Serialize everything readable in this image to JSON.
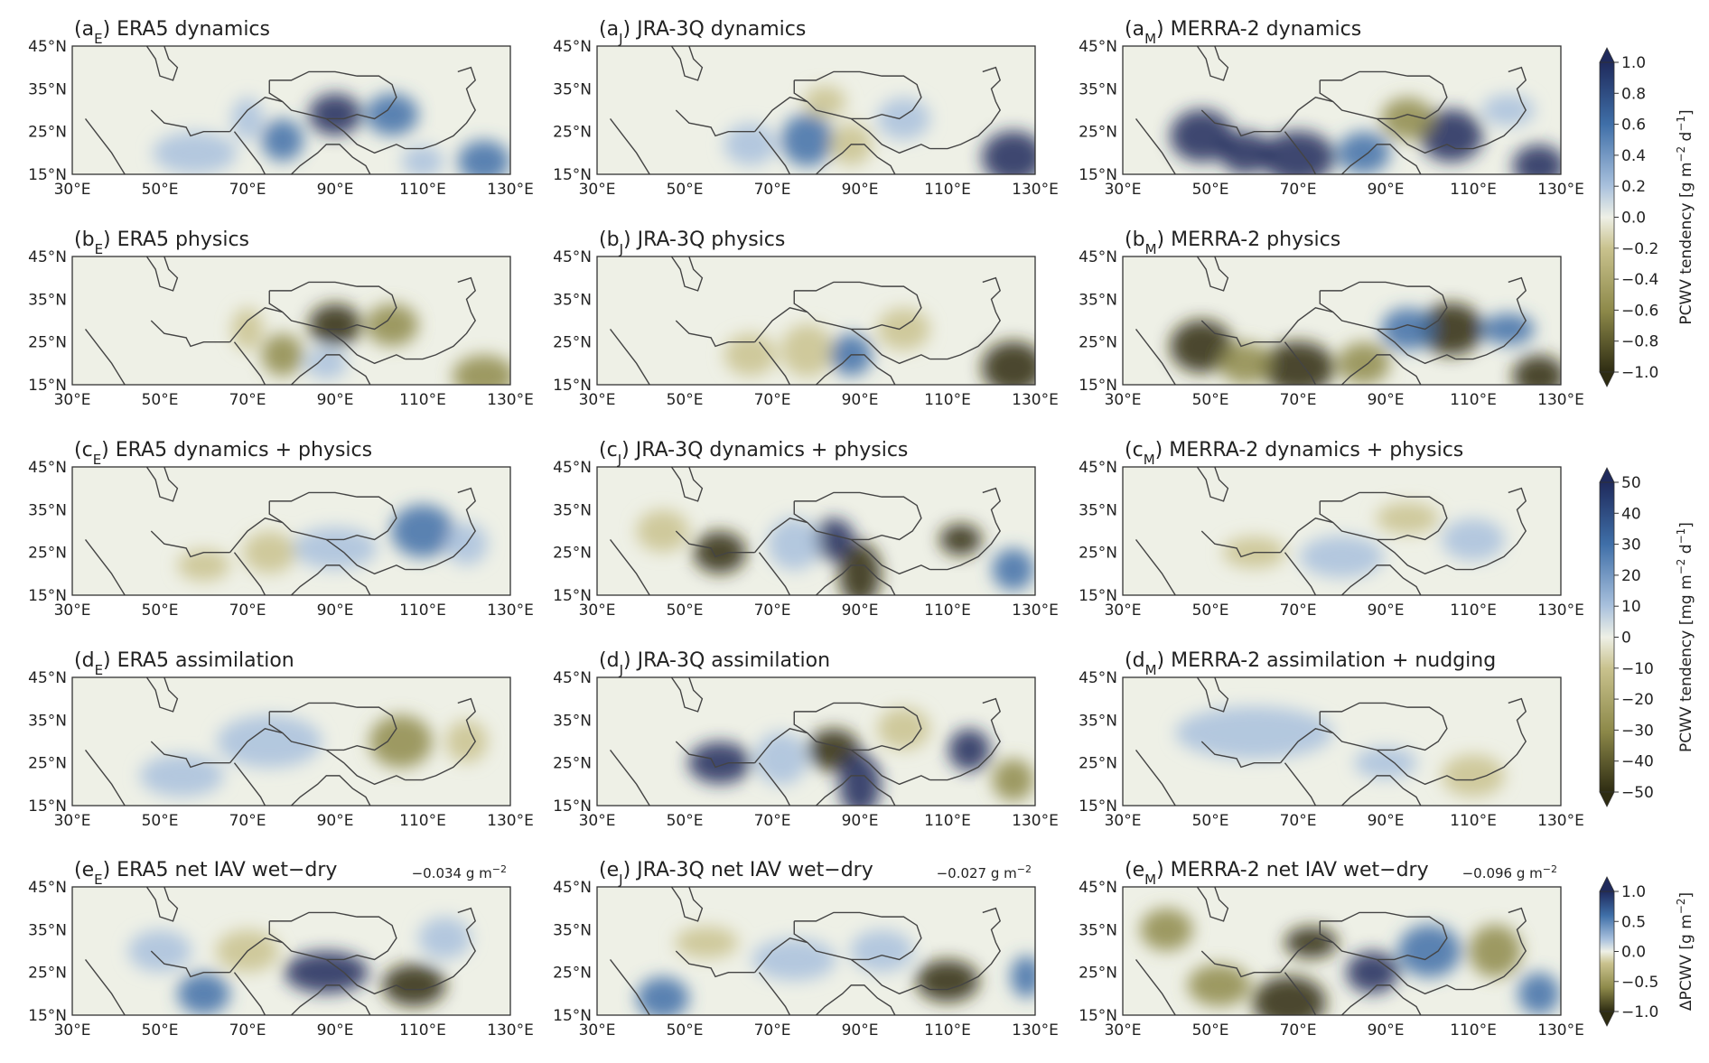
{
  "panels": [
    {
      "title": [
        "(a",
        "E",
        ") ERA5 dynamics"
      ]
    },
    {
      "title": [
        "(a",
        "J",
        ") JRA-3Q dynamics"
      ]
    },
    {
      "title": [
        "(a",
        "M",
        ") MERRA-2 dynamics"
      ]
    },
    {
      "title": [
        "(b",
        "E",
        ") ERA5 physics"
      ]
    },
    {
      "title": [
        "(b",
        "J",
        ") JRA-3Q physics"
      ]
    },
    {
      "title": [
        "(b",
        "M",
        ") MERRA-2 physics"
      ]
    },
    {
      "title": [
        "(c",
        "E",
        ") ERA5 dynamics + physics"
      ]
    },
    {
      "title": [
        "(c",
        "J",
        ") JRA-3Q dynamics + physics"
      ]
    },
    {
      "title": [
        "(c",
        "M",
        ") MERRA-2 dynamics + physics"
      ]
    },
    {
      "title": [
        "(d",
        "E",
        ") ERA5 assimilation"
      ]
    },
    {
      "title": [
        "(d",
        "J",
        ") JRA-3Q assimilation"
      ]
    },
    {
      "title": [
        "(d",
        "M",
        ") MERRA-2 assimilation + nudging"
      ]
    },
    {
      "title": [
        "(e",
        "E",
        ") ERA5 net IAV wet−dry"
      ],
      "annotation": [
        "−0.034 g m",
        "−2"
      ]
    },
    {
      "title": [
        "(e",
        "J",
        ") JRA-3Q net IAV wet−dry"
      ],
      "annotation": [
        "−0.027 g m",
        "−2"
      ]
    },
    {
      "title": [
        "(e",
        "M",
        ") MERRA-2 net IAV wet−dry"
      ],
      "annotation": [
        "−0.096 g m",
        "−2"
      ]
    }
  ],
  "lat_labels": [
    "45°N",
    "35°N",
    "25°N",
    "15°N"
  ],
  "lon_labels": [
    "30°E",
    "50°E",
    "70°E",
    "90°E",
    "110°E",
    "130°E"
  ],
  "colorbars": [
    {
      "ticks": [
        "1.0",
        "0.8",
        "0.6",
        "0.4",
        "0.2",
        "0.0",
        "−0.2",
        "−0.4",
        "−0.6",
        "−0.8",
        "−1.0"
      ],
      "label": [
        "PCWV tendency [g m",
        "−2",
        " d",
        "−1",
        "]"
      ]
    },
    {
      "ticks": [
        "50",
        "40",
        "30",
        "20",
        "10",
        "0",
        "−10",
        "−20",
        "−30",
        "−40",
        "−50"
      ],
      "label": [
        "PCWV tendency [mg m",
        "−2",
        " d",
        "−1",
        "]"
      ]
    },
    {
      "ticks": [
        "1.0",
        "0.5",
        "0.0",
        "−0.5",
        "−1.0"
      ],
      "label": [
        "ΔPCWV [g m",
        "−2",
        "]"
      ]
    }
  ]
}
